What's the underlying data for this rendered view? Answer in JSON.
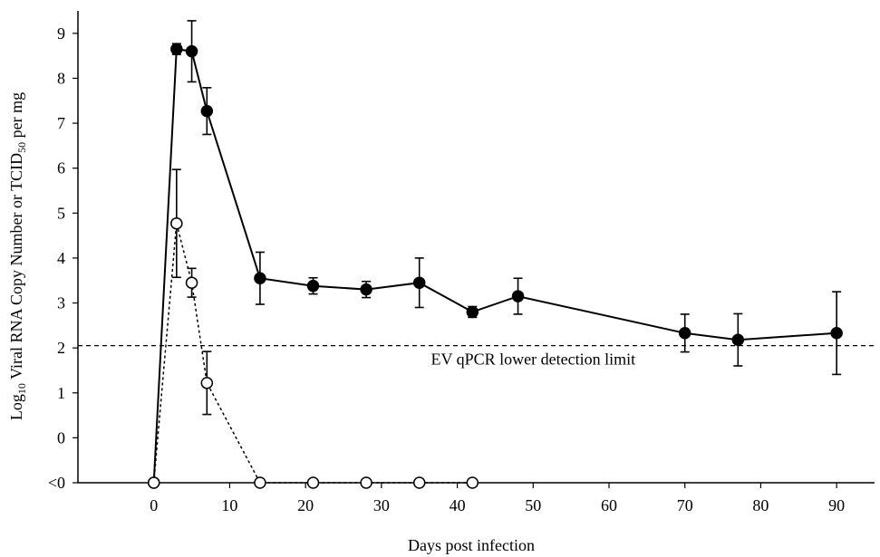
{
  "chart_data": {
    "type": "line",
    "xlabel": "Days post infection",
    "ylabel": {
      "prefix": "Log",
      "prefix_sub": "10",
      "middle": " Viral RNA Copy Number or TCID",
      "middle_sub": "50",
      "suffix": " per mg"
    },
    "xlim": [
      -10,
      95
    ],
    "ylim": [
      -1,
      9.5
    ],
    "xticks": [
      0,
      10,
      20,
      30,
      40,
      50,
      60,
      70,
      80,
      90
    ],
    "yticks": [
      {
        "value": -1,
        "label": "<0"
      },
      {
        "value": 0,
        "label": "0"
      },
      {
        "value": 1,
        "label": "1"
      },
      {
        "value": 2,
        "label": "2"
      },
      {
        "value": 3,
        "label": "3"
      },
      {
        "value": 4,
        "label": "4"
      },
      {
        "value": 5,
        "label": "5"
      },
      {
        "value": 6,
        "label": "6"
      },
      {
        "value": 7,
        "label": "7"
      },
      {
        "value": 8,
        "label": "8"
      },
      {
        "value": 9,
        "label": "9"
      }
    ],
    "reference_line": {
      "y": 2.05,
      "label": "EV qPCR lower detection limit",
      "style": "dashed"
    },
    "series": [
      {
        "marker": "filled-circle",
        "line": "solid",
        "x": [
          0,
          3,
          5,
          7,
          14,
          21,
          28,
          35,
          42,
          48,
          70,
          77,
          90
        ],
        "y": [
          -1,
          8.65,
          8.6,
          7.27,
          3.55,
          3.38,
          3.3,
          3.45,
          2.8,
          3.15,
          2.33,
          2.18,
          2.33
        ],
        "err": [
          0,
          0.12,
          0.68,
          0.52,
          0.58,
          0.18,
          0.18,
          0.55,
          0.12,
          0.4,
          0.42,
          0.58,
          0.92
        ]
      },
      {
        "marker": "open-circle",
        "line": "dotted",
        "x": [
          0,
          3,
          5,
          7,
          14,
          21,
          28,
          35,
          42
        ],
        "y": [
          -1,
          4.77,
          3.45,
          1.22,
          -1,
          -1,
          -1,
          -1,
          -1
        ],
        "err": [
          0,
          1.2,
          0.32,
          0.7,
          0,
          0,
          0,
          0,
          0
        ]
      }
    ]
  }
}
